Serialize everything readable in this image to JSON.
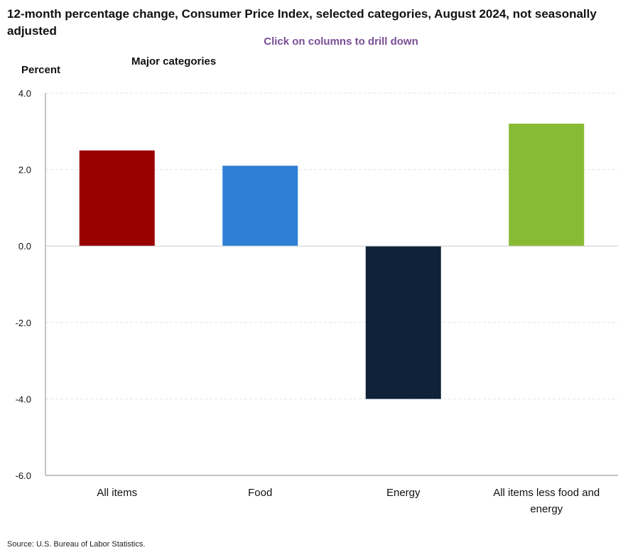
{
  "chart_data": {
    "type": "bar",
    "title": "12-month percentage change, Consumer Price Index, selected categories, August 2024, not seasonally adjusted",
    "subtitle": "Major categories",
    "ylabel": "Percent",
    "xlabel": "",
    "instruction": "Click on columns to drill down",
    "source": "Source: U.S. Bureau of Labor Statistics.",
    "ylim": [
      -6.0,
      4.0
    ],
    "yticks": [
      "4.0",
      "2.0",
      "0.0",
      "-2.0",
      "-4.0",
      "-6.0"
    ],
    "ytick_values": [
      4,
      2,
      0,
      -2,
      -4,
      -6
    ],
    "grid": true,
    "categories": [
      [
        "All items"
      ],
      [
        "Food"
      ],
      [
        "Energy"
      ],
      [
        "All items less food and",
        "energy"
      ]
    ],
    "values": [
      2.5,
      2.1,
      -4.0,
      3.2
    ],
    "colors": [
      "#990000",
      "#2f7fd6",
      "#0f2238",
      "#88bb33"
    ]
  }
}
